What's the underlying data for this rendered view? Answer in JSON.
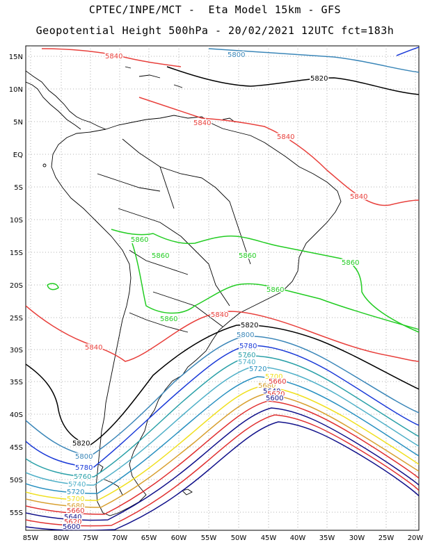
{
  "title_line1": "CPTEC/INPE/MCT -  Eta Model 15km - GFS",
  "title_line2": "Geopotential Height 500hPa - 20/02/2021 12UTC fct=183h",
  "lat_labels": [
    "15N",
    "10N",
    "5N",
    "EQ",
    "5S",
    "10S",
    "15S",
    "20S",
    "25S",
    "30S",
    "35S",
    "40S",
    "45S",
    "50S",
    "55S"
  ],
  "lon_labels": [
    "85W",
    "80W",
    "75W",
    "70W",
    "65W",
    "60W",
    "55W",
    "50W",
    "45W",
    "40W",
    "35W",
    "30W",
    "25W",
    "20W"
  ],
  "contour_levels": [
    {
      "value": "5860",
      "color": "#22cc22"
    },
    {
      "value": "5840",
      "color": "#e8403c"
    },
    {
      "value": "5820",
      "color": "#000000"
    },
    {
      "value": "5800",
      "color": "#3a86b8"
    },
    {
      "value": "5780",
      "color": "#1a3ad8"
    },
    {
      "value": "5760",
      "color": "#2aa0a8"
    },
    {
      "value": "5740",
      "color": "#50b0c8"
    },
    {
      "value": "5720",
      "color": "#2890c0"
    },
    {
      "value": "5700",
      "color": "#f0e020"
    },
    {
      "value": "5680",
      "color": "#d8a030"
    },
    {
      "value": "5660",
      "color": "#e03030"
    },
    {
      "value": "5640",
      "color": "#10108a"
    },
    {
      "value": "5620",
      "color": "#e03030"
    },
    {
      "value": "5600",
      "color": "#10108a"
    }
  ],
  "contour_labels": [
    {
      "text": "5840",
      "color": "#e8403c"
    },
    {
      "text": "5800",
      "color": "#3a86b8"
    },
    {
      "text": "5820",
      "color": "#000000"
    },
    {
      "text": "5840",
      "color": "#e8403c"
    },
    {
      "text": "5840",
      "color": "#e8403c"
    },
    {
      "text": "5840",
      "color": "#e8403c"
    },
    {
      "text": "5860",
      "color": "#22cc22"
    },
    {
      "text": "5860",
      "color": "#22cc22"
    },
    {
      "text": "5860",
      "color": "#22cc22"
    },
    {
      "text": "5860",
      "color": "#22cc22"
    },
    {
      "text": "5860",
      "color": "#22cc22"
    },
    {
      "text": "5860",
      "color": "#22cc22"
    },
    {
      "text": "5840",
      "color": "#e8403c"
    },
    {
      "text": "5820",
      "color": "#000000"
    },
    {
      "text": "5840",
      "color": "#e8403c"
    },
    {
      "text": "5800",
      "color": "#3a86b8"
    },
    {
      "text": "5780",
      "color": "#1a3ad8"
    },
    {
      "text": "5760",
      "color": "#2aa0a8"
    },
    {
      "text": "5740",
      "color": "#50b0c8"
    },
    {
      "text": "5720",
      "color": "#2890c0"
    },
    {
      "text": "5700",
      "color": "#f0e020"
    },
    {
      "text": "5680",
      "color": "#d8a030"
    },
    {
      "text": "5660",
      "color": "#e03030"
    },
    {
      "text": "5640",
      "color": "#10108a"
    },
    {
      "text": "5620",
      "color": "#e03030"
    },
    {
      "text": "5600",
      "color": "#10108a"
    },
    {
      "text": "5820",
      "color": "#000000"
    },
    {
      "text": "5800",
      "color": "#3a86b8"
    },
    {
      "text": "5780",
      "color": "#1a3ad8"
    },
    {
      "text": "5760",
      "color": "#2aa0a8"
    },
    {
      "text": "5740",
      "color": "#50b0c8"
    },
    {
      "text": "5720",
      "color": "#2890c0"
    },
    {
      "text": "5700",
      "color": "#f0e020"
    },
    {
      "text": "5680",
      "color": "#d8a030"
    },
    {
      "text": "5660",
      "color": "#e03030"
    },
    {
      "text": "5640",
      "color": "#10108a"
    },
    {
      "text": "5620",
      "color": "#e03030"
    },
    {
      "text": "5600",
      "color": "#10108a"
    }
  ]
}
